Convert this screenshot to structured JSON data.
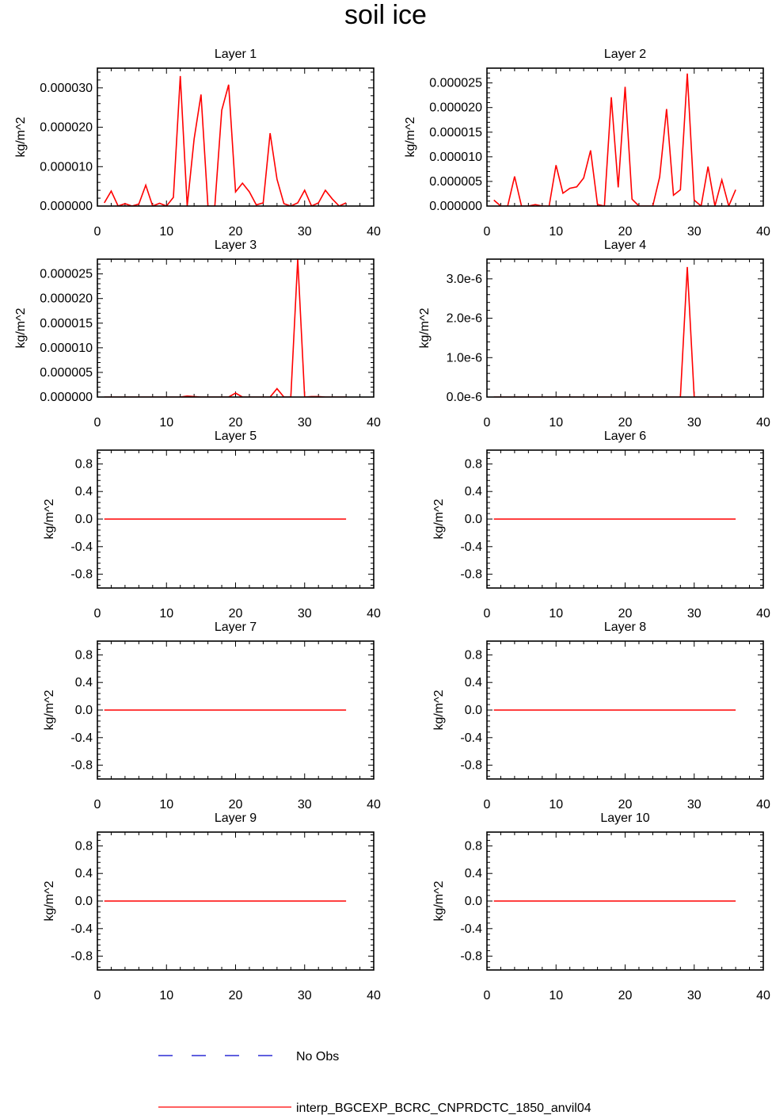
{
  "title": "soil ice",
  "legend": {
    "obs_label": "No Obs",
    "model_label": "interp_BGCEXP_BCRC_CNPRDCTC_1850_anvil04",
    "obs_color": "#0000cc",
    "model_color": "#ff0000"
  },
  "chart_data": [
    {
      "type": "line",
      "title": "Layer 1",
      "ylabel": "kg/m^2",
      "xlim": [
        0,
        40
      ],
      "xticks": [
        "0",
        "10",
        "20",
        "30",
        "40"
      ],
      "ylim": [
        0,
        3.5e-05
      ],
      "yticks": [
        {
          "v": 0,
          "label": "0.000000"
        },
        {
          "v": 1e-05,
          "label": "0.000010"
        },
        {
          "v": 2e-05,
          "label": "0.000020"
        },
        {
          "v": 3e-05,
          "label": "0.000030"
        }
      ],
      "x": [
        1,
        2,
        3,
        4,
        5,
        6,
        7,
        8,
        9,
        10,
        11,
        12,
        13,
        14,
        15,
        16,
        17,
        18,
        19,
        20,
        21,
        22,
        23,
        24,
        25,
        26,
        27,
        28,
        29,
        30,
        31,
        32,
        33,
        34,
        35,
        36
      ],
      "series": [
        {
          "name": "interp_BGCEXP_BCRC_CNPRDCTC_1850_anvil04",
          "color": "#ff0000",
          "values": [
            8e-07,
            3.8e-06,
            0.0,
            6e-07,
            0.0,
            5e-07,
            5.3e-06,
            0.0,
            7e-07,
            0.0,
            2.2e-06,
            3.3e-05,
            0.0,
            1.7e-05,
            2.83e-05,
            0.0,
            0.0,
            2.43e-05,
            3.08e-05,
            3.6e-06,
            5.8e-06,
            3.6e-06,
            3e-07,
            8e-07,
            1.85e-05,
            6.8e-06,
            6e-07,
            0.0,
            8e-07,
            4e-06,
            0.0,
            8e-07,
            4e-06,
            1.8e-06,
            0.0,
            8e-07
          ]
        }
      ]
    },
    {
      "type": "line",
      "title": "Layer 2",
      "ylabel": "kg/m^2",
      "xlim": [
        0,
        40
      ],
      "xticks": [
        "0",
        "10",
        "20",
        "30",
        "40"
      ],
      "ylim": [
        0,
        2.8e-05
      ],
      "yticks": [
        {
          "v": 0,
          "label": "0.000000"
        },
        {
          "v": 5e-06,
          "label": "0.000005"
        },
        {
          "v": 1e-05,
          "label": "0.000010"
        },
        {
          "v": 1.5e-05,
          "label": "0.000015"
        },
        {
          "v": 2e-05,
          "label": "0.000020"
        },
        {
          "v": 2.5e-05,
          "label": "0.000025"
        }
      ],
      "x": [
        1,
        2,
        3,
        4,
        5,
        6,
        7,
        8,
        9,
        10,
        11,
        12,
        13,
        14,
        15,
        16,
        17,
        18,
        19,
        20,
        21,
        22,
        23,
        24,
        25,
        26,
        27,
        28,
        29,
        30,
        31,
        32,
        33,
        34,
        35,
        36
      ],
      "series": [
        {
          "name": "interp_BGCEXP_BCRC_CNPRDCTC_1850_anvil04",
          "color": "#ff0000",
          "values": [
            1.2e-06,
            0.0,
            0.0,
            6e-06,
            0.0,
            0.0,
            3e-07,
            0.0,
            0.0,
            8.3e-06,
            2.6e-06,
            3.6e-06,
            3.9e-06,
            5.7e-06,
            1.13e-05,
            3e-07,
            0.0,
            2.21e-05,
            3.8e-06,
            2.42e-05,
            1.4e-06,
            0.0,
            0.0,
            0.0,
            5.9e-06,
            1.97e-05,
            2.2e-06,
            3.3e-06,
            2.69e-05,
            1.2e-06,
            0.0,
            8e-06,
            0.0,
            5.3e-06,
            0.0,
            3.3e-06
          ]
        }
      ]
    },
    {
      "type": "line",
      "title": "Layer 3",
      "ylabel": "kg/m^2",
      "xlim": [
        0,
        40
      ],
      "xticks": [
        "0",
        "10",
        "20",
        "30",
        "40"
      ],
      "ylim": [
        0,
        2.8e-05
      ],
      "yticks": [
        {
          "v": 0,
          "label": "0.000000"
        },
        {
          "v": 5e-06,
          "label": "0.000005"
        },
        {
          "v": 1e-05,
          "label": "0.000010"
        },
        {
          "v": 1.5e-05,
          "label": "0.000015"
        },
        {
          "v": 2e-05,
          "label": "0.000020"
        },
        {
          "v": 2.5e-05,
          "label": "0.000025"
        }
      ],
      "x": [
        1,
        2,
        3,
        4,
        5,
        6,
        7,
        8,
        9,
        10,
        11,
        12,
        13,
        14,
        15,
        16,
        17,
        18,
        19,
        20,
        21,
        22,
        23,
        24,
        25,
        26,
        27,
        28,
        29,
        30,
        31,
        32,
        33,
        34,
        35,
        36
      ],
      "series": [
        {
          "name": "interp_BGCEXP_BCRC_CNPRDCTC_1850_anvil04",
          "color": "#ff0000",
          "values": [
            0,
            0,
            0,
            0,
            0,
            0,
            0,
            0,
            0,
            0,
            0,
            0,
            2e-07,
            1e-07,
            0,
            0,
            0,
            0,
            0,
            8e-07,
            0,
            0,
            0,
            0,
            0,
            1.7e-06,
            0,
            0,
            2.8e-05,
            0,
            1e-07,
            1e-07,
            0,
            0,
            0,
            0
          ]
        }
      ]
    },
    {
      "type": "line",
      "title": "Layer 4",
      "ylabel": "kg/m^2",
      "xlim": [
        0,
        40
      ],
      "xticks": [
        "0",
        "10",
        "20",
        "30",
        "40"
      ],
      "ylim": [
        0,
        3.5e-06
      ],
      "yticks": [
        {
          "v": 0,
          "label": "0.0e-6"
        },
        {
          "v": 1e-06,
          "label": "1.0e-6"
        },
        {
          "v": 2e-06,
          "label": "2.0e-6"
        },
        {
          "v": 3e-06,
          "label": "3.0e-6"
        }
      ],
      "x": [
        1,
        2,
        3,
        4,
        5,
        6,
        7,
        8,
        9,
        10,
        11,
        12,
        13,
        14,
        15,
        16,
        17,
        18,
        19,
        20,
        21,
        22,
        23,
        24,
        25,
        26,
        27,
        28,
        29,
        30,
        31,
        32,
        33,
        34,
        35,
        36
      ],
      "series": [
        {
          "name": "interp_BGCEXP_BCRC_CNPRDCTC_1850_anvil04",
          "color": "#ff0000",
          "values": [
            0,
            0,
            0,
            0,
            0,
            0,
            0,
            0,
            0,
            0,
            0,
            0,
            0,
            0,
            0,
            0,
            0,
            0,
            0,
            0,
            0,
            0,
            0,
            0,
            0,
            0,
            0,
            0,
            3.3e-06,
            0,
            0,
            0,
            0,
            0,
            0,
            0
          ]
        }
      ]
    },
    {
      "type": "line",
      "title": "Layer 5",
      "ylabel": "kg/m^2",
      "xlim": [
        0,
        40
      ],
      "xticks": [
        "0",
        "10",
        "20",
        "30",
        "40"
      ],
      "ylim": [
        -1,
        1
      ],
      "yticks": [
        {
          "v": -0.8,
          "label": "-0.8"
        },
        {
          "v": -0.4,
          "label": "-0.4"
        },
        {
          "v": 0,
          "label": "0.0"
        },
        {
          "v": 0.4,
          "label": "0.4"
        },
        {
          "v": 0.8,
          "label": "0.8"
        }
      ],
      "x": [
        1,
        36
      ],
      "series": [
        {
          "name": "interp_BGCEXP_BCRC_CNPRDCTC_1850_anvil04",
          "color": "#ff0000",
          "values": [
            0,
            0
          ]
        }
      ]
    },
    {
      "type": "line",
      "title": "Layer 6",
      "ylabel": "kg/m^2",
      "xlim": [
        0,
        40
      ],
      "xticks": [
        "0",
        "10",
        "20",
        "30",
        "40"
      ],
      "ylim": [
        -1,
        1
      ],
      "yticks": [
        {
          "v": -0.8,
          "label": "-0.8"
        },
        {
          "v": -0.4,
          "label": "-0.4"
        },
        {
          "v": 0,
          "label": "0.0"
        },
        {
          "v": 0.4,
          "label": "0.4"
        },
        {
          "v": 0.8,
          "label": "0.8"
        }
      ],
      "x": [
        1,
        36
      ],
      "series": [
        {
          "name": "interp_BGCEXP_BCRC_CNPRDCTC_1850_anvil04",
          "color": "#ff0000",
          "values": [
            0,
            0
          ]
        }
      ]
    },
    {
      "type": "line",
      "title": "Layer 7",
      "ylabel": "kg/m^2",
      "xlim": [
        0,
        40
      ],
      "xticks": [
        "0",
        "10",
        "20",
        "30",
        "40"
      ],
      "ylim": [
        -1,
        1
      ],
      "yticks": [
        {
          "v": -0.8,
          "label": "-0.8"
        },
        {
          "v": -0.4,
          "label": "-0.4"
        },
        {
          "v": 0,
          "label": "0.0"
        },
        {
          "v": 0.4,
          "label": "0.4"
        },
        {
          "v": 0.8,
          "label": "0.8"
        }
      ],
      "x": [
        1,
        36
      ],
      "series": [
        {
          "name": "interp_BGCEXP_BCRC_CNPRDCTC_1850_anvil04",
          "color": "#ff0000",
          "values": [
            0,
            0
          ]
        }
      ]
    },
    {
      "type": "line",
      "title": "Layer 8",
      "ylabel": "kg/m^2",
      "xlim": [
        0,
        40
      ],
      "xticks": [
        "0",
        "10",
        "20",
        "30",
        "40"
      ],
      "ylim": [
        -1,
        1
      ],
      "yticks": [
        {
          "v": -0.8,
          "label": "-0.8"
        },
        {
          "v": -0.4,
          "label": "-0.4"
        },
        {
          "v": 0,
          "label": "0.0"
        },
        {
          "v": 0.4,
          "label": "0.4"
        },
        {
          "v": 0.8,
          "label": "0.8"
        }
      ],
      "x": [
        1,
        36
      ],
      "series": [
        {
          "name": "interp_BGCEXP_BCRC_CNPRDCTC_1850_anvil04",
          "color": "#ff0000",
          "values": [
            0,
            0
          ]
        }
      ]
    },
    {
      "type": "line",
      "title": "Layer 9",
      "ylabel": "kg/m^2",
      "xlim": [
        0,
        40
      ],
      "xticks": [
        "0",
        "10",
        "20",
        "30",
        "40"
      ],
      "ylim": [
        -1,
        1
      ],
      "yticks": [
        {
          "v": -0.8,
          "label": "-0.8"
        },
        {
          "v": -0.4,
          "label": "-0.4"
        },
        {
          "v": 0,
          "label": "0.0"
        },
        {
          "v": 0.4,
          "label": "0.4"
        },
        {
          "v": 0.8,
          "label": "0.8"
        }
      ],
      "x": [
        1,
        36
      ],
      "series": [
        {
          "name": "interp_BGCEXP_BCRC_CNPRDCTC_1850_anvil04",
          "color": "#ff0000",
          "values": [
            0,
            0
          ]
        }
      ]
    },
    {
      "type": "line",
      "title": "Layer 10",
      "ylabel": "kg/m^2",
      "xlim": [
        0,
        40
      ],
      "xticks": [
        "0",
        "10",
        "20",
        "30",
        "40"
      ],
      "ylim": [
        -1,
        1
      ],
      "yticks": [
        {
          "v": -0.8,
          "label": "-0.8"
        },
        {
          "v": -0.4,
          "label": "-0.4"
        },
        {
          "v": 0,
          "label": "0.0"
        },
        {
          "v": 0.4,
          "label": "0.4"
        },
        {
          "v": 0.8,
          "label": "0.8"
        }
      ],
      "x": [
        1,
        36
      ],
      "series": [
        {
          "name": "interp_BGCEXP_BCRC_CNPRDCTC_1850_anvil04",
          "color": "#ff0000",
          "values": [
            0,
            0
          ]
        }
      ]
    }
  ]
}
